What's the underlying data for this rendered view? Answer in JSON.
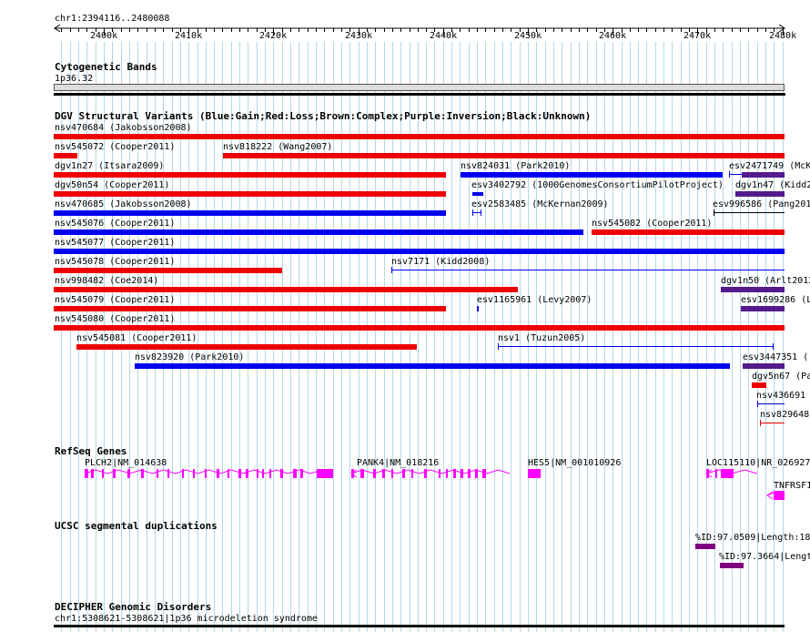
{
  "header": {
    "locus": "chr1:2394116..2480088"
  },
  "ruler": {
    "ticks": [
      "2400k",
      "2410k",
      "2420k",
      "2430k",
      "2440k",
      "2450k",
      "2460k",
      "2470k",
      "2480k"
    ]
  },
  "colors": {
    "gain": "#0000ee",
    "loss": "#ee0000",
    "complex": "#8b4513",
    "inversion": "#551a8b",
    "unknown": "#000000",
    "refseq": "#ff00ff",
    "segdup": "#800080",
    "grid": "#b5d7e6"
  },
  "tracks": {
    "cytoband": {
      "title": "Cytogenetic Bands",
      "band": "1p36.32"
    },
    "dgv": {
      "title": "DGV Structural Variants (Blue:Gain;Red:Loss;Brown:Complex;Purple:Inversion;Black:Unknown)",
      "labels": [
        "nsv470684 (Jakobsson2008)",
        "nsv545072 (Cooper2011)",
        "nsv818222 (Wang2007)",
        "dgv1n27 (Itsara2009)",
        "nsv824031 (Park2010)",
        "esv2471749 (McK",
        "dgv50n54 (Cooper2011)",
        "esv3402792 (1000GenomesConsortiumPilotProject)",
        "dgv1n47 (Kidd2",
        "nsv470685 (Jakobsson2008)",
        "esv2583485 (McKernan2009)",
        "esv996586 (Pang201",
        "nsv545076 (Cooper2011)",
        "nsv545082 (Cooper2011)",
        "nsv545077 (Cooper2011)",
        "nsv545078 (Cooper2011)",
        "nsv7171 (Kidd2008)",
        "nsv998482 (Coe2014)",
        "dgv1n50 (Arlt2012",
        "nsv545079 (Cooper2011)",
        "esv1165961 (Levy2007)",
        "esv1699286 (L",
        "nsv545080 (Cooper2011)",
        "nsv545081 (Cooper2011)",
        "nsv1 (Tuzun2005)",
        "nsv823920 (Park2010)",
        "esv3447351 (",
        "dgv5n67 (Pa",
        "nsv436691",
        "nsv829648"
      ]
    },
    "refseq": {
      "title": "RefSeq Genes",
      "labels": [
        "PLCH2|NM_014638",
        "PANK4|NM_018216",
        "HES5|NM_001010926",
        "LOC115110|NR_026927",
        "TNFRSF1"
      ]
    },
    "segdup": {
      "title": "UCSC segmental duplications",
      "labels": [
        "%ID:97.0509|Length:18",
        "%ID:97.3664|Lengt"
      ]
    },
    "decipher": {
      "title": "DECIPHER Genomic Disorders",
      "label": "chr1:5308621-5308621|1p36 microdeletion syndrome"
    }
  }
}
